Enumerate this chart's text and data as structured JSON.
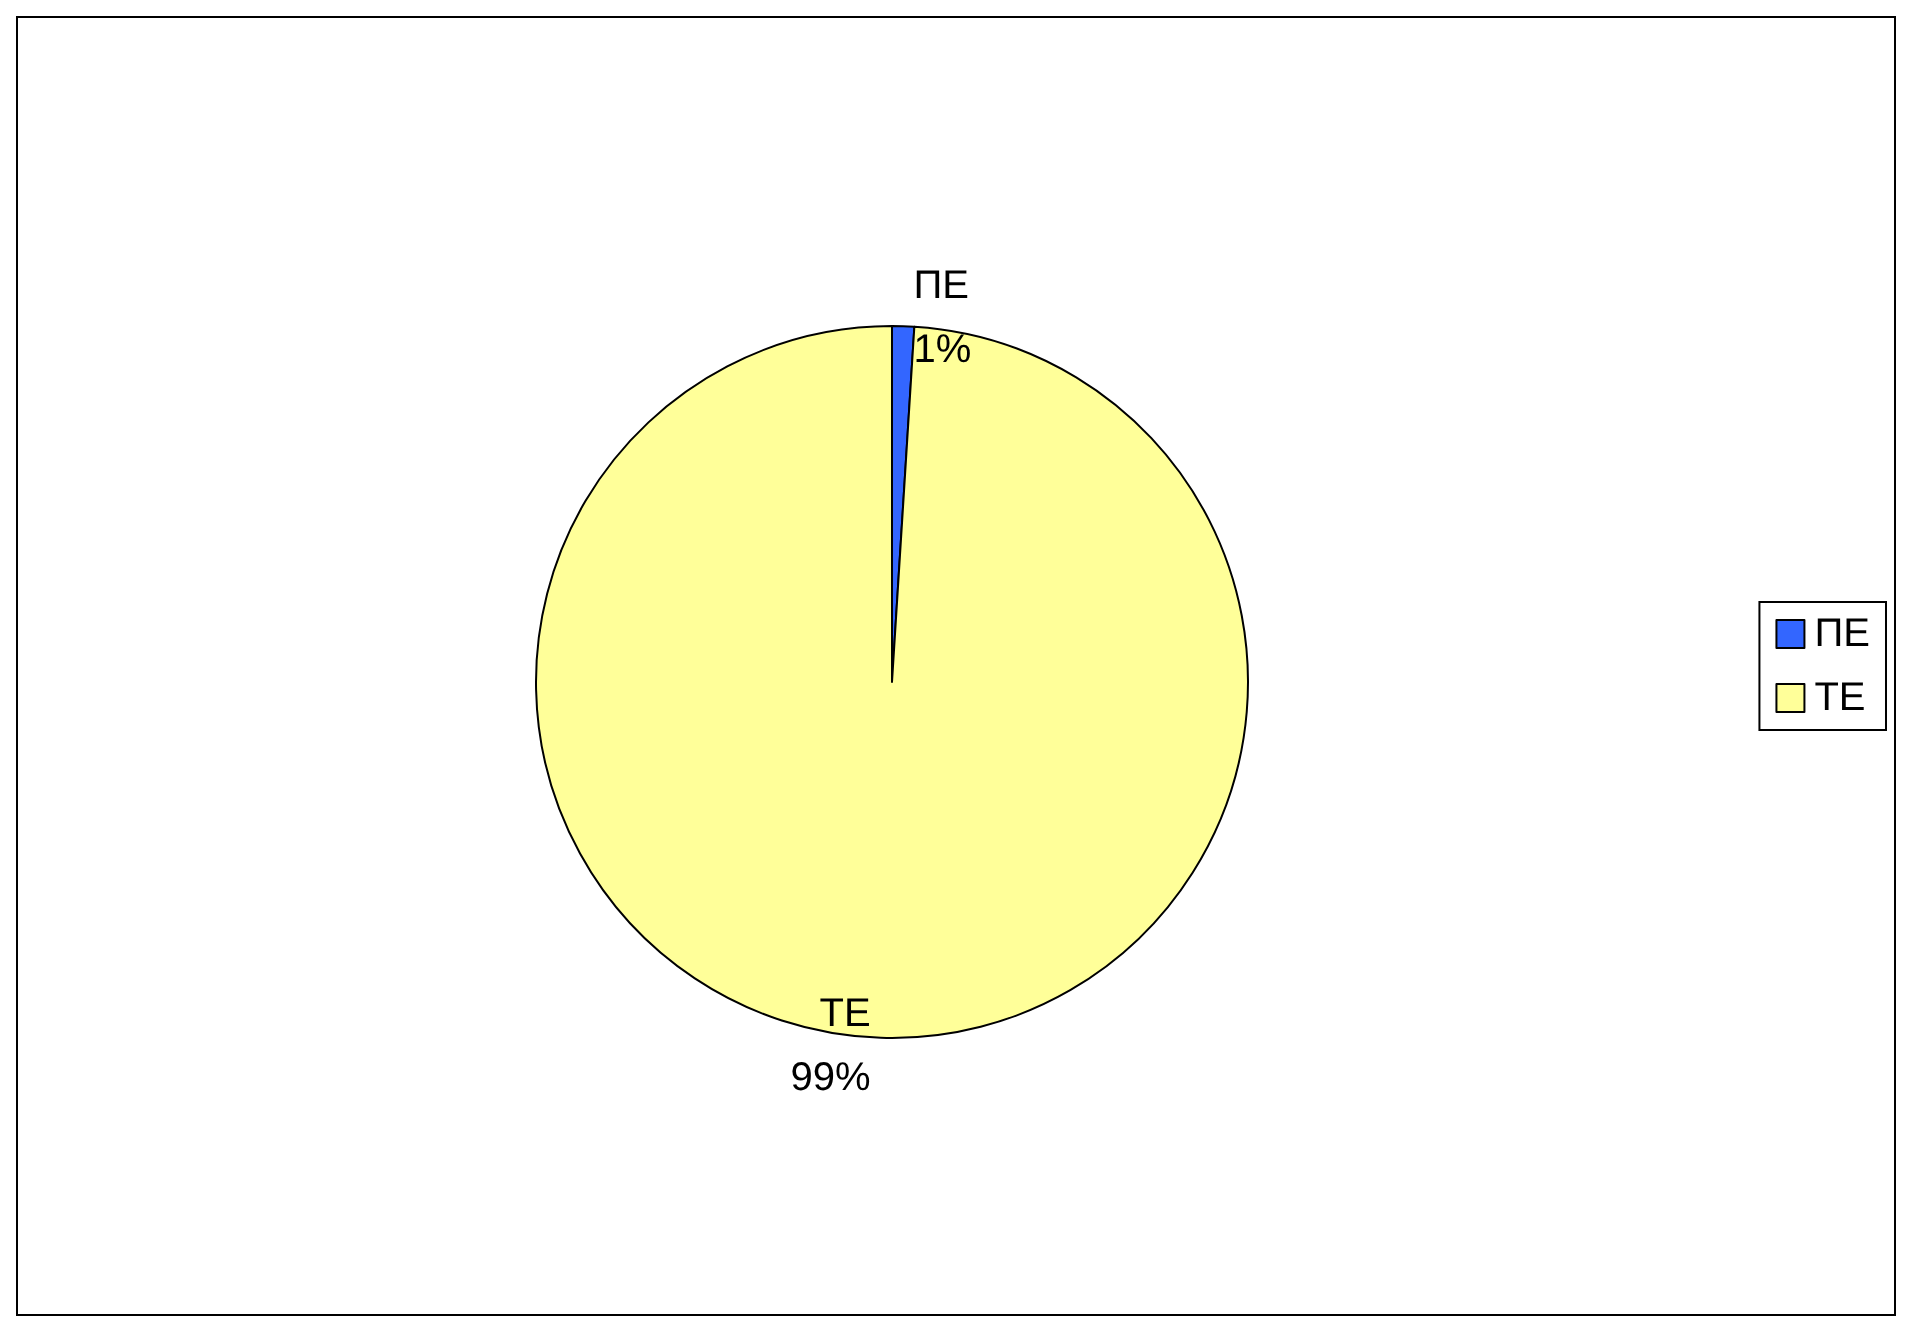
{
  "chart_data": {
    "type": "pie",
    "categories": [
      "ΠΕ",
      "ΤΕ"
    ],
    "values": [
      1,
      99
    ],
    "colors": [
      "#3366ff",
      "#ffff99"
    ],
    "value_labels": [
      "1%",
      "99%"
    ],
    "legend": "right"
  }
}
